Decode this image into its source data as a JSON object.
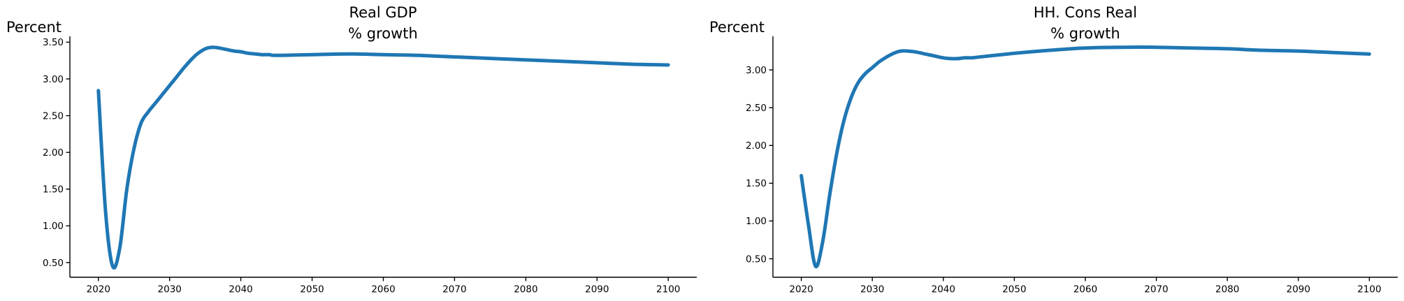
{
  "figure": {
    "background": "#ffffff",
    "accent_line_color": "#1f77b4",
    "axis_color": "#000000"
  },
  "chart_data": [
    {
      "type": "line",
      "title": "Real GDP\n% growth",
      "ylabel": "Percent",
      "series_name": "Real GDP % growth",
      "line_name": "real-gdp-growth-line",
      "line_color": "#1f77b4",
      "grid": false,
      "legend": "none",
      "x": [
        2020,
        2021,
        2022,
        2023,
        2024,
        2025,
        2026,
        2027,
        2028,
        2029,
        2030,
        2031,
        2032,
        2033,
        2034,
        2035,
        2036,
        2037,
        2038,
        2039,
        2040,
        2041,
        2042,
        2043,
        2044,
        2045,
        2050,
        2055,
        2060,
        2065,
        2070,
        2075,
        2080,
        2085,
        2090,
        2095,
        2100
      ],
      "y": [
        2.84,
        1.2,
        0.45,
        0.7,
        1.5,
        2.05,
        2.4,
        2.55,
        2.67,
        2.79,
        2.91,
        3.03,
        3.15,
        3.26,
        3.35,
        3.41,
        3.43,
        3.42,
        3.4,
        3.38,
        3.37,
        3.35,
        3.34,
        3.33,
        3.33,
        3.32,
        3.33,
        3.34,
        3.33,
        3.32,
        3.3,
        3.28,
        3.26,
        3.24,
        3.22,
        3.2,
        3.19
      ],
      "xlim": [
        2016,
        2104
      ],
      "ylim": [
        0.3,
        3.58
      ],
      "xticks": [
        2020,
        2030,
        2040,
        2050,
        2060,
        2070,
        2080,
        2090,
        2100
      ],
      "xtick_labels": [
        "2020",
        "2030",
        "2040",
        "2050",
        "2060",
        "2070",
        "2080",
        "2090",
        "2100"
      ],
      "yticks": [
        0.5,
        1.0,
        1.5,
        2.0,
        2.5,
        3.0,
        3.5
      ],
      "ytick_labels": [
        "0.50",
        "1.00",
        "1.50",
        "2.00",
        "2.50",
        "3.00",
        "3.50"
      ]
    },
    {
      "type": "line",
      "title": "HH. Cons Real\n% growth",
      "ylabel": "Percent",
      "series_name": "HH. Cons Real % growth",
      "line_name": "hh-cons-growth-line",
      "line_color": "#1f77b4",
      "grid": false,
      "legend": "none",
      "x": [
        2020,
        2021,
        2022,
        2023,
        2024,
        2025,
        2026,
        2027,
        2028,
        2029,
        2030,
        2031,
        2032,
        2033,
        2034,
        2035,
        2036,
        2037,
        2038,
        2039,
        2040,
        2041,
        2042,
        2043,
        2044,
        2045,
        2050,
        2055,
        2060,
        2065,
        2070,
        2075,
        2080,
        2085,
        2090,
        2095,
        2100
      ],
      "y": [
        1.6,
        0.95,
        0.4,
        0.72,
        1.35,
        1.9,
        2.33,
        2.63,
        2.83,
        2.95,
        3.03,
        3.11,
        3.17,
        3.22,
        3.25,
        3.25,
        3.24,
        3.22,
        3.2,
        3.18,
        3.16,
        3.15,
        3.15,
        3.16,
        3.16,
        3.17,
        3.22,
        3.26,
        3.29,
        3.3,
        3.3,
        3.29,
        3.28,
        3.26,
        3.25,
        3.23,
        3.21
      ],
      "xlim": [
        2016,
        2104
      ],
      "ylim": [
        0.255,
        3.445
      ],
      "xticks": [
        2020,
        2030,
        2040,
        2050,
        2060,
        2070,
        2080,
        2090,
        2100
      ],
      "xtick_labels": [
        "2020",
        "2030",
        "2040",
        "2050",
        "2060",
        "2070",
        "2080",
        "2090",
        "2100"
      ],
      "yticks": [
        0.5,
        1.0,
        1.5,
        2.0,
        2.5,
        3.0
      ],
      "ytick_labels": [
        "0.50",
        "1.00",
        "1.50",
        "2.00",
        "2.50",
        "3.00"
      ]
    }
  ]
}
